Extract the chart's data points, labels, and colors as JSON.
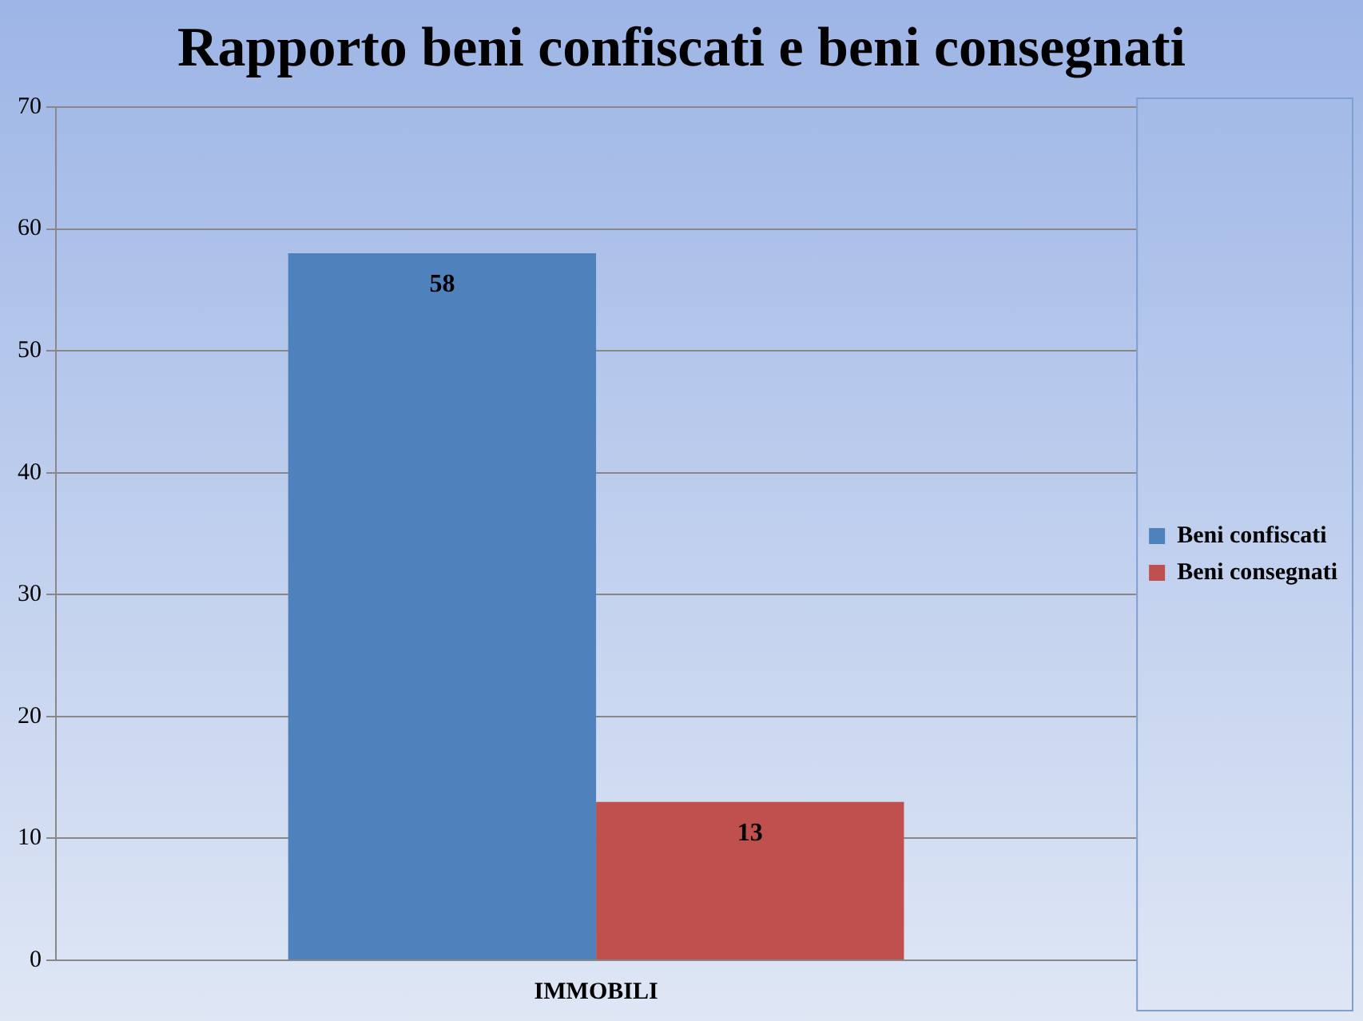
{
  "chart_data": {
    "type": "bar",
    "title": "Rapporto beni confiscati e beni consegnati",
    "categories": [
      "IMMOBILI"
    ],
    "series": [
      {
        "name": "Beni confiscati",
        "color": "#4f81bd",
        "values": [
          58
        ]
      },
      {
        "name": "Beni consegnati",
        "color": "#c0504d",
        "values": [
          13
        ]
      }
    ],
    "ylim": [
      0,
      70
    ],
    "yticks": [
      0,
      10,
      20,
      30,
      40,
      50,
      60,
      70
    ],
    "grid": "y",
    "legend": "right",
    "data_labels": true
  }
}
